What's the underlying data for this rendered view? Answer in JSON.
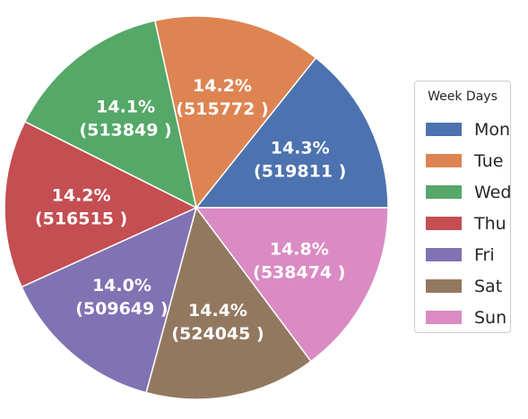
{
  "chart_data": {
    "type": "pie",
    "title": "",
    "legend_title": "Week Days",
    "legend_position": "right",
    "categories": [
      "Mon",
      "Tue",
      "Wed",
      "Thu",
      "Fri",
      "Sat",
      "Sun"
    ],
    "values": [
      519811,
      515772,
      513849,
      516515,
      509649,
      524045,
      538474
    ],
    "percent_labels": [
      "14.3%",
      "14.2%",
      "14.1%",
      "14.2%",
      "14.0%",
      "14.4%",
      "14.8%"
    ],
    "value_labels": [
      "(519811 )",
      "(515772 )",
      "(513849 )",
      "(516515 )",
      "(509649 )",
      "(524045 )",
      "(538474 )"
    ],
    "colors": [
      "#4c72b0",
      "#dd8452",
      "#55a868",
      "#c44e52",
      "#8172b3",
      "#937860",
      "#da8bc3"
    ]
  }
}
